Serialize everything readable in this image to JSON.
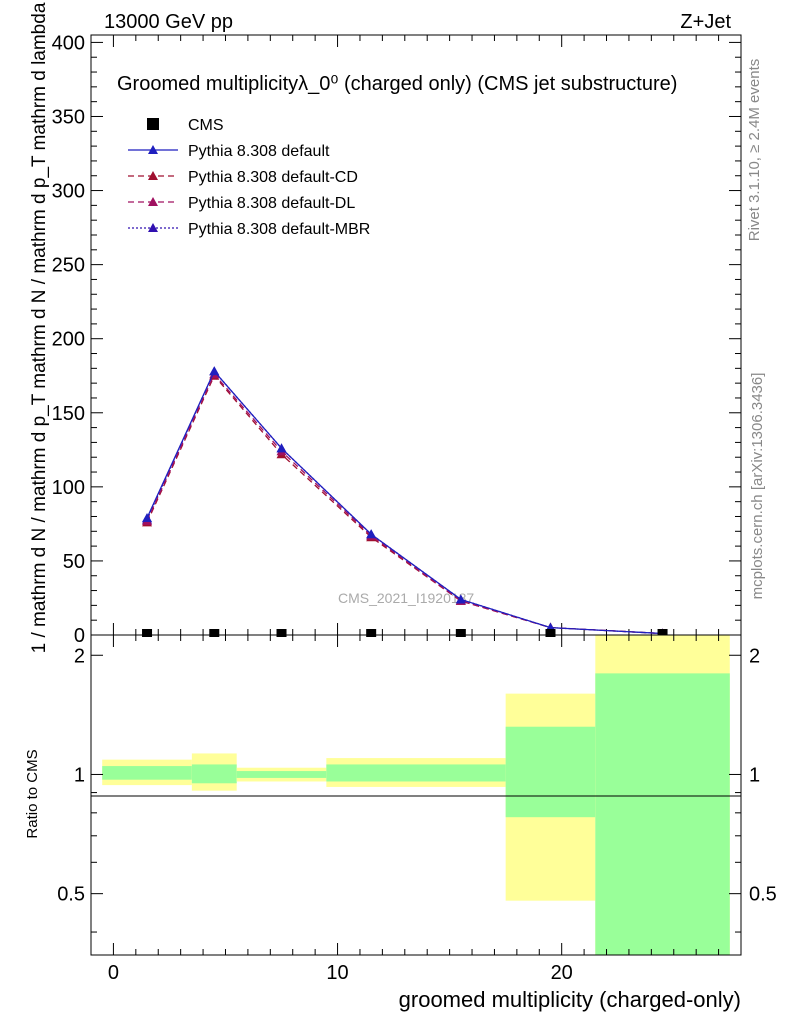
{
  "header": {
    "left": "13000 GeV pp",
    "right": "Z+Jet"
  },
  "side": {
    "rivet": "Rivet 3.1.10, ≥ 2.4M events",
    "mcplots": "mcplots.cern.ch [arXiv:1306.3436]"
  },
  "watermark": "CMS_2021_I1920187",
  "colors": {
    "mc": "#1f1fbf",
    "cd": "#a01030",
    "dl": "#a01060",
    "mbr": "#3010b0",
    "data": "#000000",
    "band_outer": "#ffff99",
    "band_inner": "#99ff99"
  },
  "chart_data": [
    {
      "type": "line",
      "title": "Groomed multiplicityλ_0⁰ (charged only) (CMS jet substructure)",
      "ylabel": "1 / mathrm d N / mathrm d p_T mathrm d N / mathrm d p_T mathrm d lambda",
      "ylim": [
        0,
        405
      ],
      "xlim": [
        -1,
        28
      ],
      "yticks": [
        "0",
        "50",
        "100",
        "150",
        "200",
        "250",
        "300",
        "350",
        "400"
      ],
      "grid": false,
      "legend_position": "top-left",
      "x": [
        1.5,
        4.5,
        7.5,
        11.5,
        15.5,
        19.5,
        24.5
      ],
      "series": [
        {
          "name": "CMS",
          "marker": "square",
          "values": [
            0.5,
            0.5,
            0.5,
            0.5,
            0.5,
            0.1,
            0.05
          ]
        },
        {
          "name": "Pythia 8.308 default",
          "style": "solid",
          "values": [
            79,
            178,
            126,
            68,
            24,
            5,
            1
          ]
        },
        {
          "name": "Pythia 8.308 default-CD",
          "style": "dashed",
          "values": [
            76,
            175,
            122,
            66,
            23,
            5,
            1
          ]
        },
        {
          "name": "Pythia 8.308 default-DL",
          "style": "dashed",
          "values": [
            77,
            176,
            124,
            67,
            23,
            5,
            1
          ]
        },
        {
          "name": "Pythia 8.308 default-MBR",
          "style": "dotted",
          "values": [
            78,
            178,
            126,
            68,
            24,
            5,
            1
          ]
        }
      ]
    },
    {
      "type": "area",
      "ylabel": "Ratio to CMS",
      "xlabel": "groomed multiplicity (charged-only)",
      "ylim": [
        0.35,
        2.25
      ],
      "xlim": [
        -1,
        28
      ],
      "scale": "log",
      "yticks": [
        "0.5",
        "1",
        "2"
      ],
      "xticks": [
        "0",
        "10",
        "20"
      ],
      "bins": [
        {
          "x0": -0.5,
          "x1": 3.5,
          "outer": [
            0.94,
            1.09
          ],
          "inner": [
            0.97,
            1.05
          ]
        },
        {
          "x0": 3.5,
          "x1": 5.5,
          "outer": [
            0.91,
            1.13
          ],
          "inner": [
            0.95,
            1.06
          ]
        },
        {
          "x0": 5.5,
          "x1": 9.5,
          "outer": [
            0.96,
            1.04
          ],
          "inner": [
            0.98,
            1.02
          ]
        },
        {
          "x0": 9.5,
          "x1": 13.5,
          "outer": [
            0.93,
            1.1
          ],
          "inner": [
            0.96,
            1.06
          ]
        },
        {
          "x0": 13.5,
          "x1": 17.5,
          "outer": [
            0.93,
            1.1
          ],
          "inner": [
            0.96,
            1.06
          ]
        },
        {
          "x0": 17.5,
          "x1": 21.5,
          "outer": [
            0.48,
            1.6
          ],
          "inner": [
            0.78,
            1.32
          ]
        },
        {
          "x0": 21.5,
          "x1": 27.5,
          "outer": [
            0.3,
            2.5
          ],
          "inner": [
            0.3,
            1.8
          ]
        }
      ]
    }
  ]
}
